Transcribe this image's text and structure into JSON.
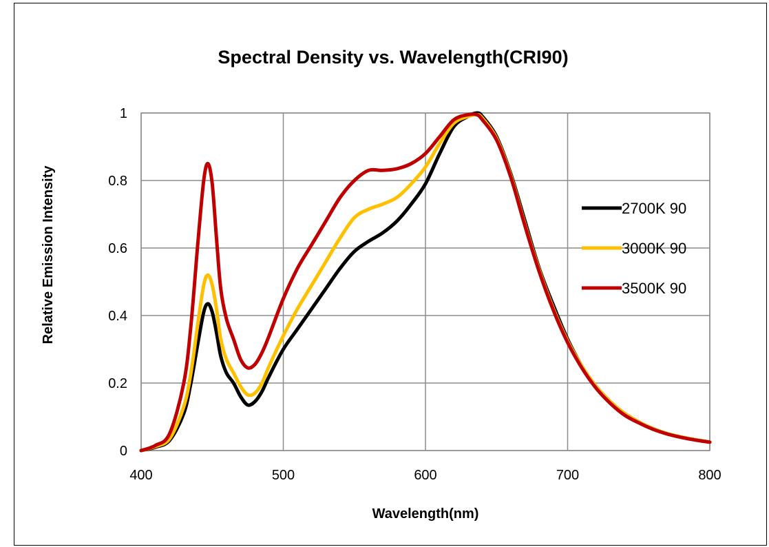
{
  "chart_data": {
    "type": "line",
    "title": "Spectral Density vs. Wavelength(CRI90)",
    "xlabel": "Wavelength(nm)",
    "ylabel": "Relative Emission Intensity",
    "xlim": [
      400,
      800
    ],
    "ylim": [
      0,
      1
    ],
    "x_ticks": [
      "400",
      "500",
      "600",
      "700",
      "800"
    ],
    "y_ticks": [
      "0",
      "0.2",
      "0.4",
      "0.6",
      "0.8",
      "1"
    ],
    "grid": true,
    "legend_position": "right",
    "series": [
      {
        "name": "2700K 90",
        "color": "#000000",
        "x": [
          400,
          410,
          420,
          430,
          435,
          440,
          444,
          447,
          450,
          453,
          456,
          460,
          465,
          470,
          475,
          480,
          485,
          490,
          500,
          510,
          520,
          530,
          540,
          550,
          560,
          570,
          580,
          590,
          600,
          610,
          620,
          630,
          636,
          640,
          650,
          660,
          670,
          680,
          690,
          700,
          710,
          720,
          730,
          740,
          750,
          760,
          770,
          780,
          790,
          800
        ],
        "y": [
          0.0,
          0.01,
          0.03,
          0.11,
          0.2,
          0.32,
          0.41,
          0.435,
          0.41,
          0.35,
          0.28,
          0.23,
          0.2,
          0.16,
          0.135,
          0.145,
          0.175,
          0.22,
          0.3,
          0.36,
          0.42,
          0.48,
          0.54,
          0.59,
          0.62,
          0.645,
          0.68,
          0.73,
          0.79,
          0.88,
          0.96,
          0.99,
          1.0,
          0.99,
          0.93,
          0.82,
          0.68,
          0.54,
          0.43,
          0.33,
          0.25,
          0.19,
          0.145,
          0.11,
          0.085,
          0.065,
          0.05,
          0.04,
          0.032,
          0.025
        ]
      },
      {
        "name": "3000K 90",
        "color": "#FFC000",
        "x": [
          400,
          410,
          420,
          430,
          435,
          440,
          444,
          447,
          450,
          453,
          456,
          460,
          465,
          470,
          475,
          480,
          485,
          490,
          500,
          510,
          520,
          530,
          540,
          550,
          560,
          570,
          580,
          590,
          600,
          610,
          620,
          630,
          636,
          640,
          650,
          660,
          670,
          680,
          690,
          700,
          710,
          720,
          730,
          740,
          750,
          760,
          770,
          780,
          790,
          800
        ],
        "y": [
          0.0,
          0.012,
          0.035,
          0.13,
          0.23,
          0.38,
          0.49,
          0.52,
          0.49,
          0.42,
          0.33,
          0.27,
          0.23,
          0.19,
          0.165,
          0.17,
          0.2,
          0.25,
          0.34,
          0.42,
          0.49,
          0.56,
          0.63,
          0.69,
          0.715,
          0.73,
          0.75,
          0.79,
          0.84,
          0.91,
          0.97,
          0.99,
          0.995,
          0.985,
          0.925,
          0.815,
          0.67,
          0.535,
          0.42,
          0.325,
          0.25,
          0.19,
          0.145,
          0.11,
          0.085,
          0.065,
          0.05,
          0.04,
          0.032,
          0.025
        ]
      },
      {
        "name": "3500K 90",
        "color": "#C00000",
        "x": [
          400,
          410,
          420,
          430,
          435,
          440,
          444,
          447,
          450,
          453,
          456,
          460,
          465,
          470,
          475,
          480,
          485,
          490,
          500,
          510,
          520,
          530,
          540,
          550,
          560,
          570,
          580,
          590,
          600,
          610,
          620,
          630,
          636,
          640,
          650,
          660,
          670,
          680,
          690,
          700,
          710,
          720,
          730,
          740,
          750,
          760,
          770,
          780,
          790,
          800
        ],
        "y": [
          0.0,
          0.015,
          0.05,
          0.2,
          0.37,
          0.62,
          0.8,
          0.85,
          0.79,
          0.63,
          0.48,
          0.39,
          0.33,
          0.27,
          0.245,
          0.255,
          0.29,
          0.34,
          0.45,
          0.54,
          0.61,
          0.68,
          0.75,
          0.8,
          0.83,
          0.83,
          0.835,
          0.85,
          0.88,
          0.93,
          0.98,
          0.995,
          0.995,
          0.98,
          0.92,
          0.81,
          0.665,
          0.53,
          0.415,
          0.32,
          0.245,
          0.185,
          0.14,
          0.105,
          0.082,
          0.063,
          0.049,
          0.039,
          0.031,
          0.025
        ]
      }
    ]
  }
}
